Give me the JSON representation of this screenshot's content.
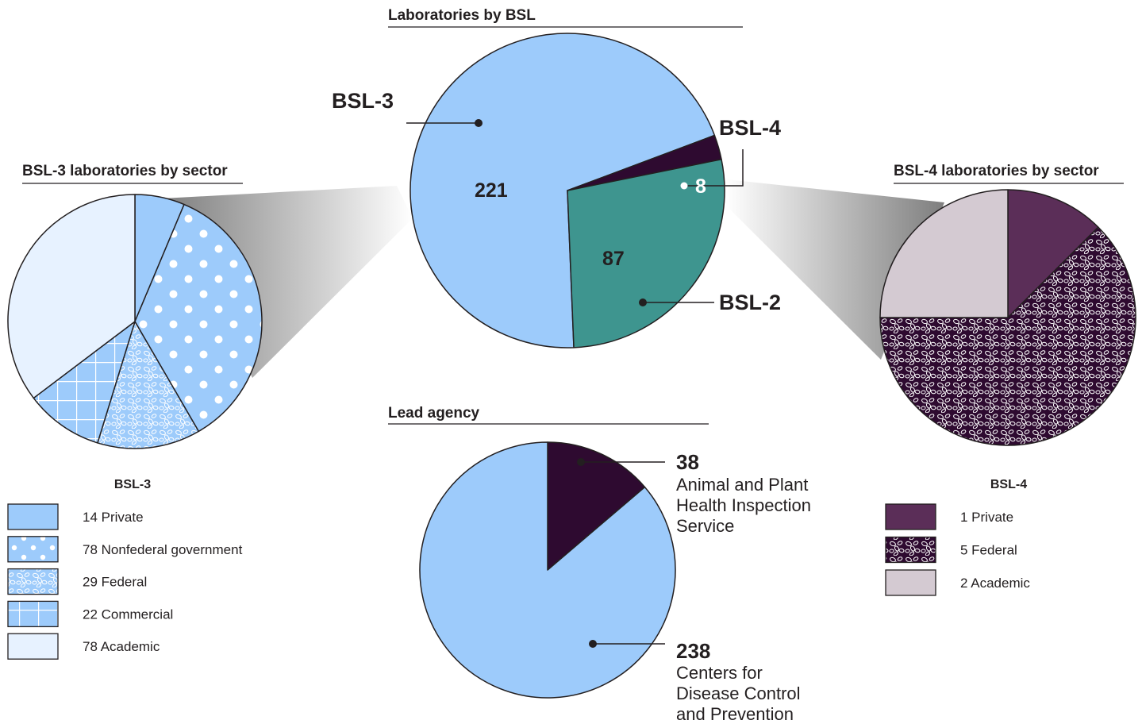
{
  "colors": {
    "light_blue": "#9dcbfb",
    "pale_blue": "#e7f2ff",
    "teal": "#3e958f",
    "dark_purple": "#2e0a30",
    "purple": "#5b2e58",
    "lavender": "#d4cad2",
    "outline": "#231f20"
  },
  "chart_data": [
    {
      "type": "pie",
      "title": "Laboratories by BSL",
      "categories": [
        "BSL-3",
        "BSL-4",
        "BSL-2"
      ],
      "values": [
        221,
        8,
        87
      ],
      "labels": [
        {
          "name": "BSL-3",
          "value": "221"
        },
        {
          "name": "BSL-4",
          "value": "8"
        },
        {
          "name": "BSL-2",
          "value": "87"
        }
      ]
    },
    {
      "type": "pie",
      "title": "BSL-3 laboratories by sector",
      "legend_title": "BSL-3",
      "categories": [
        "Private",
        "Nonfederal government",
        "Federal",
        "Commercial",
        "Academic"
      ],
      "values": [
        14,
        78,
        29,
        22,
        78
      ],
      "legend": [
        "14 Private",
        "78 Nonfederal government",
        "29 Federal",
        "22 Commercial",
        "78 Academic"
      ]
    },
    {
      "type": "pie",
      "title": "BSL-4 laboratories by sector",
      "legend_title": "BSL-4",
      "categories": [
        "Private",
        "Federal",
        "Academic"
      ],
      "values": [
        1,
        5,
        2
      ],
      "legend": [
        "1 Private",
        "5 Federal",
        "2 Academic"
      ]
    },
    {
      "type": "pie",
      "title": "Lead agency",
      "categories": [
        "Animal and Plant Health Inspection Service",
        "Centers for Disease Control and Prevention"
      ],
      "values": [
        38,
        238
      ],
      "labels": [
        {
          "value": "38",
          "lines": [
            "Animal and Plant",
            "Health Inspection",
            "Service"
          ]
        },
        {
          "value": "238",
          "lines": [
            "Centers for",
            "Disease Control",
            "and Prevention"
          ]
        }
      ]
    }
  ]
}
